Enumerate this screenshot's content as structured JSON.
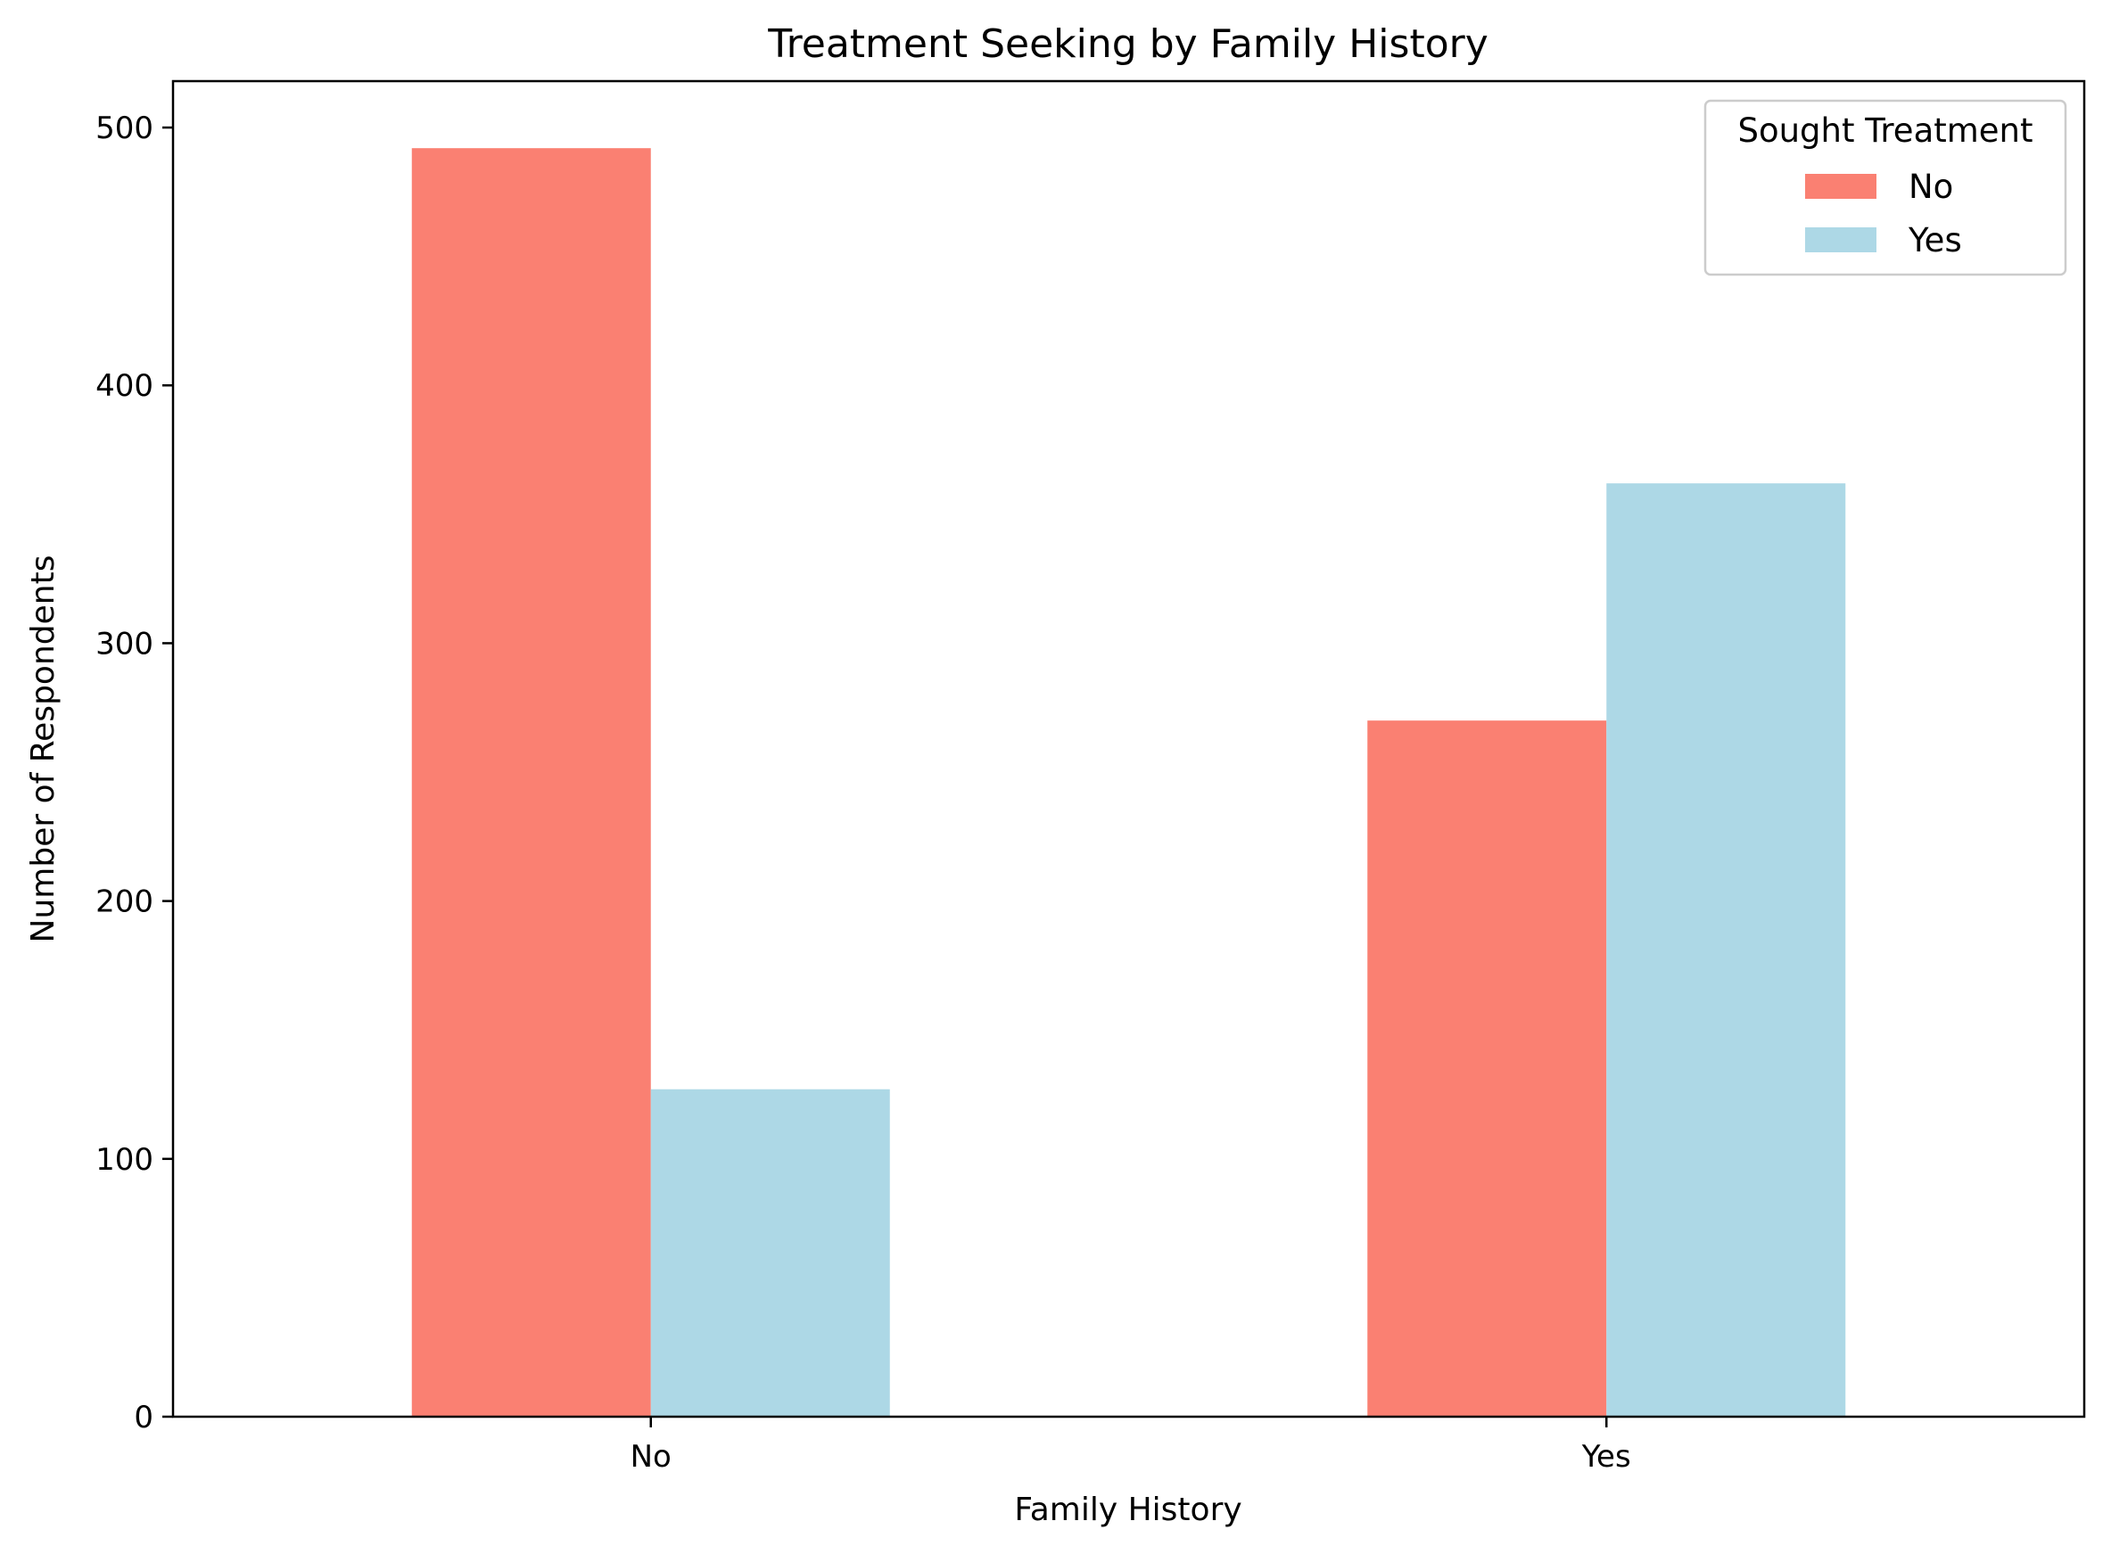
{
  "chart_data": {
    "type": "bar",
    "title": "Treatment Seeking by Family History",
    "xlabel": "Family History",
    "ylabel": "Number of Respondents",
    "categories": [
      "No",
      "Yes"
    ],
    "series": [
      {
        "name": "No",
        "values": [
          492,
          270
        ],
        "color": "#fa8072"
      },
      {
        "name": "Yes",
        "values": [
          127,
          362
        ],
        "color": "#add8e6"
      }
    ],
    "ylim": [
      0,
      518
    ],
    "yticks": [
      0,
      100,
      200,
      300,
      400,
      500
    ],
    "grid": false,
    "legend": {
      "title": "Sought Treatment",
      "placement": "top-right"
    }
  }
}
